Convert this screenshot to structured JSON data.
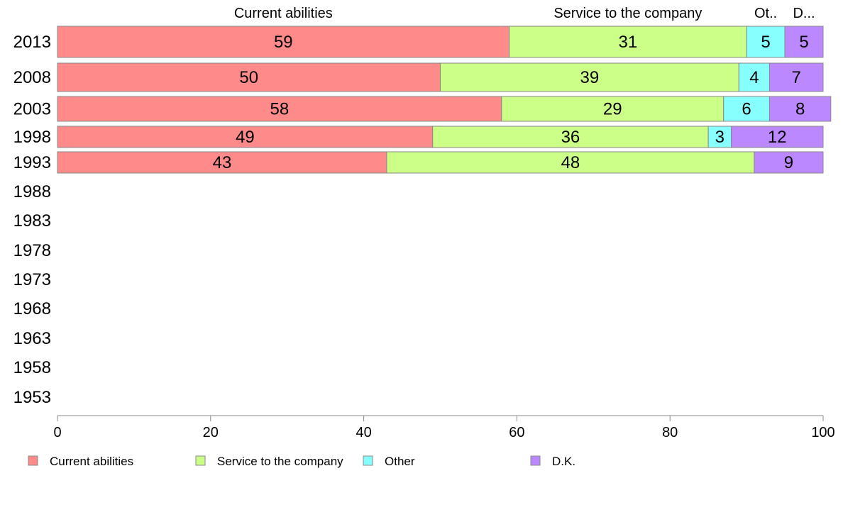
{
  "chart_data": {
    "type": "bar",
    "orientation": "horizontal",
    "stacked": true,
    "categories": [
      "2013",
      "2008",
      "2003",
      "1998",
      "1993",
      "1988",
      "1983",
      "1978",
      "1973",
      "1968",
      "1963",
      "1958",
      "1953"
    ],
    "series": [
      {
        "name": "Current abilities",
        "header": "Current abilities",
        "color": "#ff8a8a",
        "values": [
          59,
          50,
          58,
          49,
          43,
          null,
          null,
          null,
          null,
          null,
          null,
          null,
          null
        ]
      },
      {
        "name": "Service to the company",
        "header": "Service to the company",
        "color": "#ccff88",
        "values": [
          31,
          39,
          29,
          36,
          48,
          null,
          null,
          null,
          null,
          null,
          null,
          null,
          null
        ]
      },
      {
        "name": "Other",
        "header": "Ot..",
        "color": "#88ffff",
        "values": [
          5,
          4,
          6,
          3,
          0,
          null,
          null,
          null,
          null,
          null,
          null,
          null,
          null
        ]
      },
      {
        "name": "D.K.",
        "header": "D...",
        "color": "#bb88ff",
        "values": [
          5,
          7,
          8,
          12,
          9,
          null,
          null,
          null,
          null,
          null,
          null,
          null,
          null
        ]
      }
    ],
    "xlim": [
      0,
      100
    ],
    "xticks": [
      "0",
      "20",
      "40",
      "60",
      "80",
      "100"
    ],
    "legend_position": "bottom",
    "grid": false
  }
}
